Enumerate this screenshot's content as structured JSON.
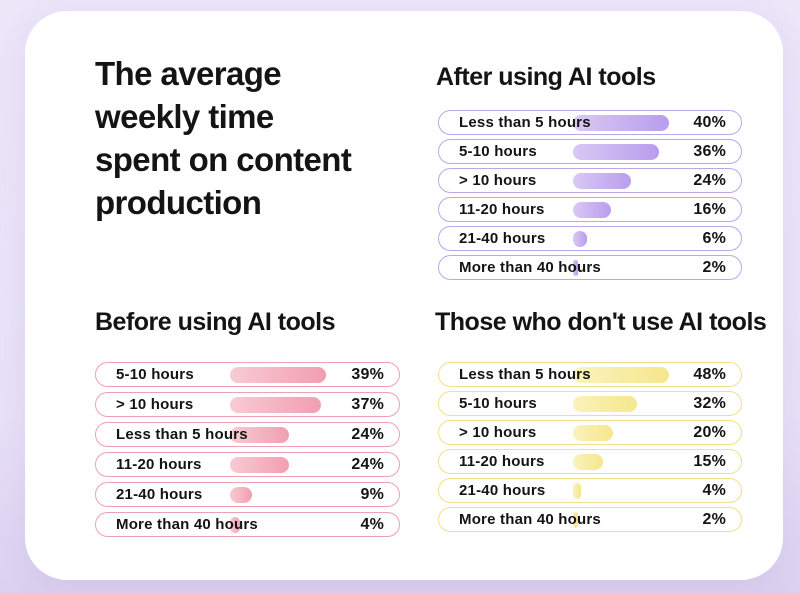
{
  "title": {
    "text": "The average weekly time spent on content production",
    "lines": [
      "The average",
      "weekly time",
      "spent on content",
      "production"
    ]
  },
  "chart_data": {
    "type": "bar",
    "orientation": "horizontal",
    "value_unit": "%",
    "title": "The average weekly time spent on content production",
    "note": "Bar lengths are scaled relative to the largest value within each section",
    "sections": [
      {
        "title": "After using AI tools",
        "theme": "purple",
        "categories": [
          "Less than 5 hours",
          "5-10 hours",
          "> 10 hours",
          "11-20 hours",
          "21-40 hours",
          "More than 40 hours"
        ],
        "values": [
          40,
          36,
          24,
          16,
          6,
          2
        ],
        "value_labels": [
          "40%",
          "36%",
          "24%",
          "16%",
          "6%",
          "2%"
        ]
      },
      {
        "title": "Before using AI tools",
        "theme": "pink",
        "categories": [
          "5-10 hours",
          "> 10 hours",
          "Less than 5 hours",
          "11-20 hours",
          "21-40 hours",
          "More than 40 hours"
        ],
        "values": [
          39,
          37,
          24,
          24,
          9,
          4
        ],
        "value_labels": [
          "39%",
          "37%",
          "24%",
          "24%",
          "9%",
          "4%"
        ]
      },
      {
        "title": "Those who don't use AI tools",
        "theme": "yellow",
        "categories": [
          "Less than 5 hours",
          "5-10 hours",
          "> 10 hours",
          "11-20 hours",
          "21-40 hours",
          "More than 40 hours"
        ],
        "values": [
          48,
          32,
          20,
          15,
          4,
          2
        ],
        "value_labels": [
          "48%",
          "32%",
          "20%",
          "15%",
          "4%",
          "2%"
        ]
      }
    ]
  },
  "colors": {
    "page_background_top": "#ECE6F9",
    "page_background_bottom": "#DCD0EF",
    "card_background": "#FFFFFF",
    "text": "#141414",
    "purple_border": "#BCA6E8",
    "purple_bar_from": "#D8C9F4",
    "purple_bar_to": "#B99DEE",
    "pink_border": "#EFA0B1",
    "pink_bar_from": "#F8CBD4",
    "pink_bar_to": "#F19EB1",
    "yellow_border": "#F0E08C",
    "yellow_bar_from": "#FAF2BC",
    "yellow_bar_to": "#F6E78C"
  }
}
